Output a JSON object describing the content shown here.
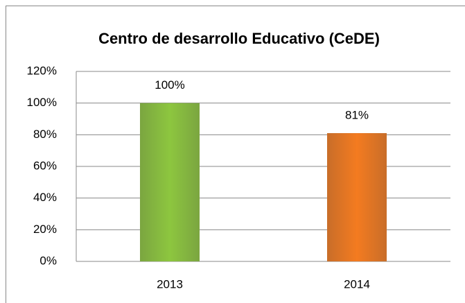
{
  "chart_data": {
    "type": "bar",
    "title": "Centro de desarrollo Educativo (CeDE)",
    "categories": [
      "2013",
      "2014"
    ],
    "values": [
      100,
      81
    ],
    "value_labels": [
      "100%",
      "81%"
    ],
    "colors": [
      "#8dc63f",
      "#f47b20"
    ],
    "ylim": [
      0,
      120
    ],
    "yticks": [
      {
        "value": 0,
        "label": "0%"
      },
      {
        "value": 20,
        "label": "20%"
      },
      {
        "value": 40,
        "label": "40%"
      },
      {
        "value": 60,
        "label": "60%"
      },
      {
        "value": 80,
        "label": "80%"
      },
      {
        "value": 100,
        "label": "100%"
      },
      {
        "value": 120,
        "label": "120%"
      }
    ],
    "grid": true
  }
}
